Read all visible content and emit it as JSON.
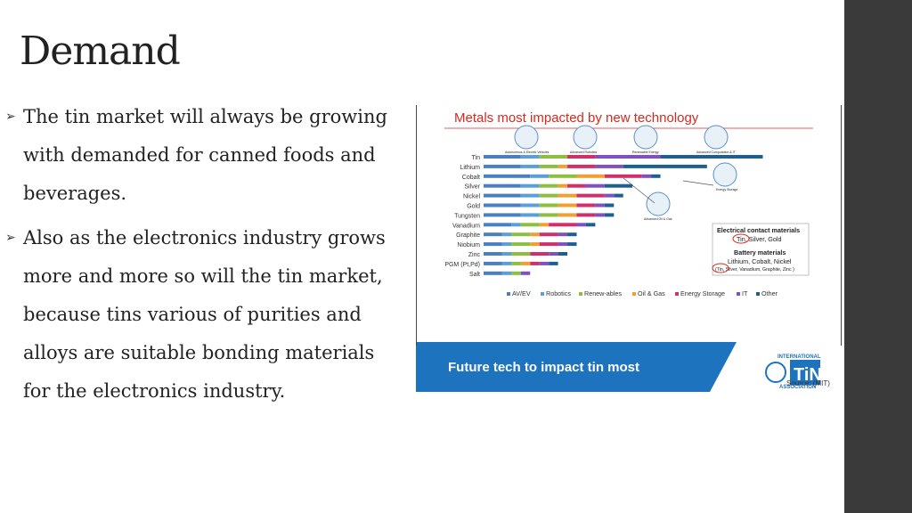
{
  "slide": {
    "title": "Demand",
    "bullets": [
      {
        "text": "The tin market will always be growing with demanded for canned foods and beverages."
      },
      {
        "text": "Also as the electronics industry grows more and more so will the tin market, because tins various of purities and alloys are suitable bonding materials for the electronics industry."
      }
    ]
  },
  "colors": {
    "AV/EV": "#4a7fc1",
    "Robotics": "#5aa0d6",
    "Renew-ables": "#8cbf3f",
    "Oil & Gas": "#f0a030",
    "Energy Storage": "#d0306a",
    "IT": "#8050c0",
    "Other": "#1f5f8f",
    "title_red": "#d9281e",
    "banner": "#1e73be"
  },
  "chart_data": {
    "type": "bar",
    "orientation": "horizontal",
    "stacked": true,
    "title": "Metals most impacted by new technology",
    "categories": [
      "Tin",
      "Lithium",
      "Cobalt",
      "Silver",
      "Nickel",
      "Gold",
      "Tungsten",
      "Vanadium",
      "Graphite",
      "Niobium",
      "Zinc",
      "PGM (Pt,Pd)",
      "Salt"
    ],
    "series": [
      {
        "name": "AV/EV",
        "values": [
          2.0,
          2.0,
          2.5,
          2.0,
          2.0,
          2.0,
          2.0,
          1.5,
          1.0,
          1.0,
          1.0,
          1.0,
          1.0
        ]
      },
      {
        "name": "Robotics",
        "values": [
          1.0,
          1.0,
          1.0,
          1.0,
          1.0,
          1.0,
          1.0,
          0.5,
          0.5,
          0.5,
          0.5,
          0.5,
          0.5
        ]
      },
      {
        "name": "Renew-ables",
        "values": [
          1.5,
          1.0,
          1.5,
          1.0,
          1.0,
          1.0,
          1.0,
          1.0,
          1.0,
          1.0,
          1.0,
          0.5,
          0.5
        ]
      },
      {
        "name": "Oil & Gas",
        "values": [
          0.0,
          0.5,
          1.5,
          0.5,
          1.0,
          1.0,
          1.0,
          0.5,
          0.5,
          0.5,
          0.0,
          0.5,
          0.0
        ]
      },
      {
        "name": "Energy Storage",
        "values": [
          1.5,
          1.5,
          2.0,
          1.0,
          1.5,
          1.0,
          1.0,
          1.5,
          1.0,
          1.0,
          1.0,
          0.5,
          0.0
        ]
      },
      {
        "name": "IT",
        "values": [
          3.5,
          1.5,
          0.5,
          1.0,
          0.5,
          0.5,
          0.5,
          0.5,
          0.5,
          0.5,
          0.5,
          0.5,
          0.5
        ]
      },
      {
        "name": "Other",
        "values": [
          5.5,
          4.5,
          0.5,
          1.5,
          0.5,
          0.5,
          0.5,
          0.5,
          0.5,
          0.5,
          0.5,
          0.5,
          0.0
        ]
      }
    ],
    "icon_labels": [
      "Autonomous & Electric Vehicles",
      "Advanced Robotics",
      "Renewable Energy",
      "Advanced Computation & IT",
      "Energy Storage",
      "Advanced Oil & Gas"
    ],
    "callout": {
      "line1": "Electrical contact materials",
      "line2": "Tin, Silver, Gold",
      "line3": "Battery materials",
      "line4": "Lithium, Cobalt, Nickel",
      "line5": "(Tin, Silver, Vanadium, Graphite, Zinc )"
    },
    "banner": "Future tech to impact tin most",
    "logo_text": [
      "INTERNATIONAL",
      "ASSOCIATION"
    ],
    "source": "Source: (MIT)",
    "legend_position": "bottom",
    "grid": false
  }
}
